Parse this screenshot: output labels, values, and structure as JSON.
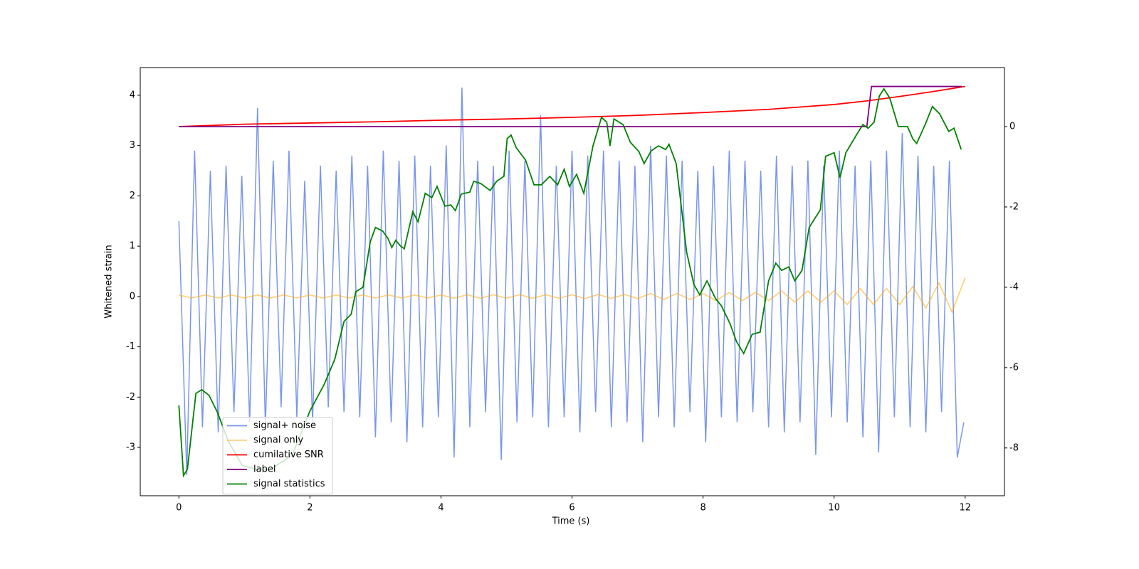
{
  "chart_data": {
    "type": "line",
    "xlabel": "Time (s)",
    "ylabel": "Whitened strain",
    "xlim": [
      -0.59,
      12.6
    ],
    "xticks": [
      0,
      2,
      4,
      6,
      8,
      10,
      12
    ],
    "ylim": [
      -3.96,
      4.55
    ],
    "yticks": [
      -3,
      -2,
      -1,
      0,
      1,
      2,
      3,
      4
    ],
    "y2lim": [
      -9.19,
      1.47
    ],
    "y2ticks": [
      -8,
      -6,
      -4,
      -2,
      0
    ],
    "legend": "lower left",
    "series": [
      {
        "name": "signal+ noise",
        "color": "#4169e1",
        "opacity": 0.7,
        "axis": "y",
        "x": [
          0,
          0.12,
          0.24,
          0.36,
          0.48,
          0.6,
          0.72,
          0.84,
          0.96,
          1.08,
          1.2,
          1.32,
          1.44,
          1.56,
          1.68,
          1.8,
          1.92,
          2.04,
          2.16,
          2.28,
          2.4,
          2.52,
          2.64,
          2.76,
          2.88,
          3.0,
          3.12,
          3.24,
          3.36,
          3.48,
          3.6,
          3.72,
          3.84,
          3.96,
          4.08,
          4.2,
          4.32,
          4.44,
          4.56,
          4.68,
          4.8,
          4.92,
          5.04,
          5.16,
          5.28,
          5.4,
          5.52,
          5.64,
          5.76,
          5.88,
          6.0,
          6.12,
          6.24,
          6.36,
          6.48,
          6.6,
          6.72,
          6.84,
          6.96,
          7.08,
          7.2,
          7.32,
          7.44,
          7.56,
          7.68,
          7.8,
          7.92,
          8.04,
          8.16,
          8.28,
          8.4,
          8.52,
          8.64,
          8.76,
          8.88,
          9.0,
          9.12,
          9.24,
          9.36,
          9.48,
          9.6,
          9.72,
          9.84,
          9.96,
          10.08,
          10.2,
          10.32,
          10.44,
          10.56,
          10.68,
          10.8,
          10.92,
          11.04,
          11.16,
          11.28,
          11.4,
          11.52,
          11.64,
          11.76,
          11.88,
          11.98
        ],
        "values": [
          1.5,
          -3.55,
          2.9,
          -2.6,
          2.5,
          -2.7,
          2.6,
          -2.3,
          2.4,
          -2.5,
          3.75,
          -2.6,
          2.7,
          -2.2,
          2.9,
          -2.4,
          2.3,
          -2.5,
          2.6,
          -2.2,
          2.5,
          -2.3,
          2.8,
          -2.4,
          2.6,
          -2.8,
          2.9,
          -2.5,
          2.7,
          -2.9,
          2.8,
          -2.6,
          2.6,
          -2.4,
          3.0,
          -3.2,
          4.15,
          -2.6,
          2.7,
          -2.3,
          2.6,
          -3.25,
          2.9,
          -2.5,
          2.7,
          -2.4,
          3.6,
          -2.6,
          2.6,
          -2.4,
          2.9,
          -2.7,
          2.8,
          -2.3,
          2.9,
          -2.6,
          2.7,
          -2.5,
          2.6,
          -2.9,
          3.0,
          -2.4,
          2.8,
          -2.6,
          2.7,
          -2.3,
          2.5,
          -2.9,
          2.6,
          -2.4,
          2.9,
          -2.5,
          2.7,
          -2.3,
          2.5,
          -2.6,
          2.8,
          -2.7,
          2.6,
          -2.5,
          2.7,
          -3.15,
          2.6,
          -2.4,
          2.9,
          -2.5,
          2.6,
          -2.8,
          2.7,
          -3.1,
          2.9,
          -2.4,
          3.25,
          -2.6,
          2.8,
          -2.7,
          2.6,
          -2.3,
          2.7,
          -3.2,
          -2.5
        ]
      },
      {
        "name": "signal only",
        "color": "#ffa500",
        "opacity": 0.5,
        "axis": "y",
        "x": [
          0,
          0.2,
          0.4,
          0.6,
          0.8,
          1.0,
          1.2,
          1.4,
          1.6,
          1.8,
          2.0,
          2.2,
          2.4,
          2.6,
          2.8,
          3.0,
          3.2,
          3.4,
          3.6,
          3.8,
          4.0,
          4.2,
          4.4,
          4.6,
          4.8,
          5.0,
          5.2,
          5.4,
          5.6,
          5.8,
          6.0,
          6.2,
          6.4,
          6.6,
          6.8,
          7.0,
          7.2,
          7.4,
          7.6,
          7.8,
          8.0,
          8.2,
          8.4,
          8.6,
          8.8,
          9.0,
          9.2,
          9.4,
          9.6,
          9.8,
          10.0,
          10.2,
          10.4,
          10.6,
          10.8,
          11.0,
          11.2,
          11.4,
          11.6,
          11.8,
          12.0
        ],
        "values": [
          0.03,
          -0.03,
          0.03,
          -0.03,
          0.03,
          -0.03,
          0.03,
          -0.03,
          0.03,
          -0.03,
          0.03,
          -0.03,
          0.03,
          -0.03,
          0.03,
          -0.03,
          0.03,
          -0.03,
          0.03,
          -0.03,
          0.03,
          -0.035,
          0.035,
          -0.035,
          0.035,
          -0.035,
          0.035,
          -0.035,
          0.035,
          -0.035,
          0.035,
          -0.04,
          0.04,
          -0.04,
          0.04,
          -0.04,
          0.06,
          -0.06,
          0.06,
          -0.06,
          0.06,
          -0.08,
          0.08,
          -0.08,
          0.08,
          -0.08,
          0.11,
          -0.11,
          0.11,
          -0.11,
          0.11,
          -0.16,
          0.16,
          -0.16,
          0.16,
          -0.16,
          0.2,
          -0.23,
          0.27,
          -0.31,
          0.37
        ]
      },
      {
        "name": "cumilative SNR",
        "color": "#ff0000",
        "opacity": 1,
        "axis": "y2",
        "x": [
          0,
          1,
          2,
          3,
          4,
          5,
          6,
          7,
          8,
          9,
          10,
          10.5,
          11,
          11.5,
          12
        ],
        "values": [
          0,
          0.06,
          0.09,
          0.12,
          0.16,
          0.19,
          0.23,
          0.28,
          0.35,
          0.43,
          0.55,
          0.64,
          0.75,
          0.87,
          1.0
        ]
      },
      {
        "name": "label",
        "color": "#800080",
        "opacity": 1,
        "axis": "y2",
        "x": [
          0,
          10.5,
          10.57,
          11.95
        ],
        "values": [
          0,
          0,
          1,
          1
        ]
      },
      {
        "name": "signal statistics",
        "color": "#008000",
        "opacity": 1,
        "axis": "y2",
        "x": [
          0,
          0.07,
          0.13,
          0.26,
          0.35,
          0.46,
          0.59,
          0.75,
          0.97,
          1.18,
          1.4,
          1.73,
          2.0,
          2.22,
          2.38,
          2.52,
          2.63,
          2.7,
          2.81,
          2.92,
          3.0,
          3.11,
          3.19,
          3.25,
          3.31,
          3.38,
          3.44,
          3.57,
          3.65,
          3.76,
          3.86,
          3.94,
          4.06,
          4.15,
          4.22,
          4.31,
          4.44,
          4.5,
          4.61,
          4.75,
          4.85,
          4.96,
          5.01,
          5.07,
          5.15,
          5.29,
          5.42,
          5.53,
          5.66,
          5.78,
          5.88,
          5.96,
          6.07,
          6.18,
          6.32,
          6.45,
          6.53,
          6.58,
          6.64,
          6.78,
          6.89,
          7.02,
          7.1,
          7.21,
          7.32,
          7.43,
          7.48,
          7.59,
          7.75,
          7.86,
          7.95,
          8.06,
          8.19,
          8.28,
          8.41,
          8.51,
          8.62,
          8.75,
          8.87,
          9.0,
          9.11,
          9.2,
          9.31,
          9.4,
          9.51,
          9.62,
          9.79,
          9.87,
          10.0,
          10.09,
          10.18,
          10.34,
          10.44,
          10.52,
          10.61,
          10.69,
          10.76,
          10.85,
          10.98,
          11.12,
          11.2,
          11.26,
          11.39,
          11.5,
          11.61,
          11.75,
          11.83,
          11.94
        ],
        "values": [
          -6.94,
          -8.69,
          -8.53,
          -6.64,
          -6.55,
          -6.69,
          -7.12,
          -7.82,
          -8.44,
          -8.53,
          -8.53,
          -8.18,
          -7.08,
          -6.41,
          -5.79,
          -4.85,
          -4.67,
          -4.11,
          -4.0,
          -2.87,
          -2.51,
          -2.6,
          -2.78,
          -3.01,
          -2.83,
          -2.97,
          -3.04,
          -2.12,
          -2.37,
          -1.66,
          -1.77,
          -1.49,
          -1.98,
          -1.95,
          -2.09,
          -1.68,
          -1.63,
          -1.36,
          -1.42,
          -1.59,
          -1.36,
          -1.24,
          -0.3,
          -0.21,
          -0.53,
          -0.83,
          -1.45,
          -1.45,
          -1.24,
          -1.45,
          -1.06,
          -1.49,
          -1.19,
          -1.66,
          -0.48,
          0.23,
          0.11,
          -0.48,
          0.19,
          0.05,
          -0.39,
          -0.62,
          -0.92,
          -0.6,
          -0.48,
          -0.57,
          -0.44,
          -0.92,
          -3.13,
          -3.93,
          -4.19,
          -3.84,
          -4.28,
          -4.46,
          -4.9,
          -5.35,
          -5.65,
          -5.17,
          -5.12,
          -3.84,
          -3.4,
          -3.58,
          -3.49,
          -3.84,
          -3.58,
          -2.51,
          -2.07,
          -0.74,
          -0.65,
          -1.27,
          -0.65,
          -0.21,
          0.05,
          -0.04,
          0.11,
          0.76,
          0.94,
          0.71,
          0,
          0,
          -0.3,
          -0.42,
          0.05,
          0.5,
          0.32,
          -0.12,
          -0.04,
          -0.57
        ]
      }
    ]
  }
}
